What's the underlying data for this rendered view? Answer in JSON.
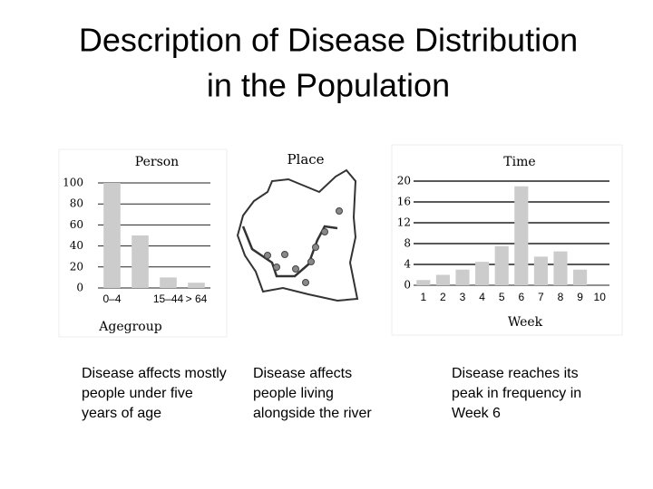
{
  "title": [
    "Description of Disease Distribution",
    "in the Population"
  ],
  "chart_data": [
    {
      "type": "bar",
      "title": "Person",
      "x_label": "Agegroup",
      "categories": [
        "0–4",
        null,
        "15–44",
        "> 64"
      ],
      "values": [
        100,
        50,
        10,
        5
      ],
      "color": "#cccccc",
      "ylim": [
        0,
        100
      ],
      "yticks": [
        0,
        20,
        40,
        60,
        80,
        100
      ],
      "grid": true
    },
    {
      "type": "bar",
      "title": "Time",
      "x_label": "Week",
      "categories": [
        "1",
        "2",
        "3",
        "4",
        "5",
        "6",
        "7",
        "8",
        "9",
        "10"
      ],
      "values": [
        1,
        2,
        3,
        4.5,
        7.5,
        19,
        5.5,
        6.5,
        3,
        0
      ],
      "color": "#cccccc",
      "ylim": [
        0,
        20
      ],
      "yticks": [
        0,
        4,
        8,
        12,
        16,
        20
      ],
      "grid": true
    }
  ],
  "map": {
    "title": "Place"
  },
  "captions": [
    "Disease affects mostly people under five years of age",
    "Disease affects people living alongside  the river",
    "Disease reaches its peak in frequency in Week 6"
  ]
}
